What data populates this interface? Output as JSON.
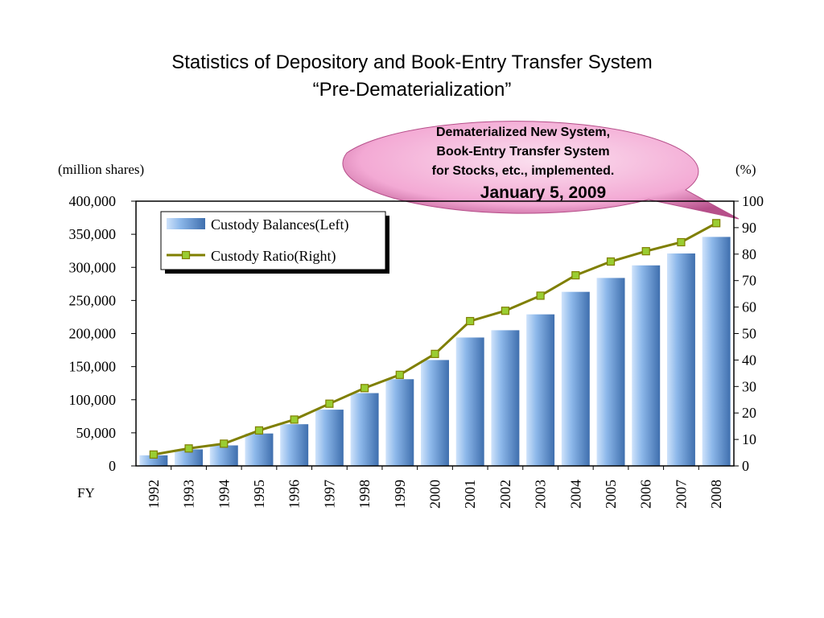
{
  "title_line1": "Statistics of Depository and Book-Entry Transfer System",
  "title_line2": "“Pre-Dematerialization”",
  "left_unit": "(million shares)",
  "right_unit": "(%)",
  "x_prefix": "FY",
  "callout": {
    "line1": "Dematerialized New System,",
    "line2": "Book-Entry Transfer System",
    "line3": "for Stocks, etc., implemented.",
    "date": "January 5, 2009"
  },
  "colors": {
    "bar_light": "#cfe3fb",
    "bar_mid": "#8db8ea",
    "bar_dark": "#3f6fae",
    "line": "#7f7f00",
    "marker": "#9acd32",
    "callout_fill": "#f3a9d4",
    "callout_stroke": "#b64f8a"
  },
  "chart_data": {
    "type": "bar",
    "categories": [
      "1992",
      "1993",
      "1994",
      "1995",
      "1996",
      "1997",
      "1998",
      "1999",
      "2000",
      "2001",
      "2002",
      "2003",
      "2004",
      "2005",
      "2006",
      "2007",
      "2008"
    ],
    "series": [
      {
        "name": "Custody Balances(Left)",
        "type": "bar",
        "axis": "left",
        "values": [
          16000,
          25000,
          31000,
          49000,
          63000,
          85000,
          110000,
          131000,
          160000,
          194000,
          205000,
          229000,
          263000,
          284000,
          303000,
          321000,
          346000
        ]
      },
      {
        "name": "Custody Ratio(Right)",
        "type": "line",
        "axis": "right",
        "values": [
          4.3,
          6.6,
          8.4,
          13.4,
          17.5,
          23.5,
          29.4,
          34.4,
          42.3,
          54.7,
          58.6,
          64.3,
          72.0,
          77.2,
          81.1,
          84.5,
          91.7
        ]
      }
    ],
    "y_left": {
      "ylim": [
        0,
        400000
      ],
      "ticks": [
        "0",
        "50,000",
        "100,000",
        "150,000",
        "200,000",
        "250,000",
        "300,000",
        "350,000",
        "400,000"
      ]
    },
    "y_right": {
      "ylim": [
        0,
        100
      ],
      "ticks": [
        "0",
        "10",
        "20",
        "30",
        "40",
        "50",
        "60",
        "70",
        "80",
        "90",
        "100"
      ]
    },
    "legend_position": "top-left",
    "grid": false
  }
}
